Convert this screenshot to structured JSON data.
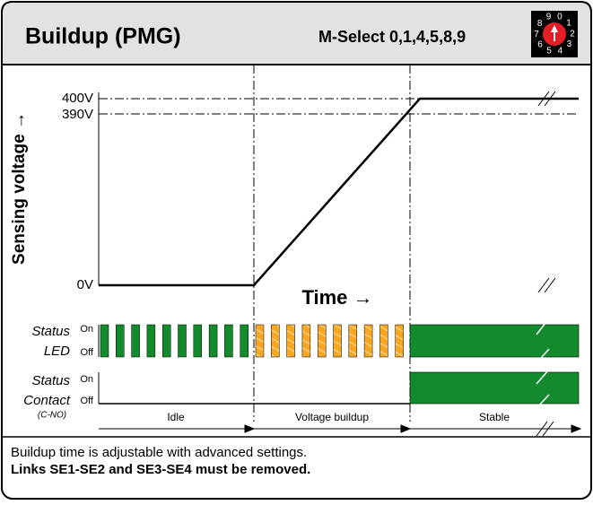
{
  "header": {
    "title": "Buildup (PMG)",
    "mode": "M-Select 0,1,4,5,8,9",
    "dial_digits": [
      "0",
      "1",
      "2",
      "3",
      "4",
      "5",
      "6",
      "7",
      "8",
      "9"
    ]
  },
  "voltage_chart": {
    "y_axis_label": "Sensing voltage →",
    "x_axis_label": "Time →",
    "levels": [
      "400V",
      "390V",
      "0V"
    ]
  },
  "rows": [
    {
      "label": [
        "Status",
        "LED"
      ],
      "states": [
        "On",
        "Off"
      ]
    },
    {
      "label": [
        "Status",
        "Contact"
      ],
      "sublabel": "(C-NO)",
      "states": [
        "On",
        "Off"
      ]
    }
  ],
  "phases": [
    "Idle",
    "Voltage buildup",
    "Stable"
  ],
  "footer": {
    "note": "Buildup time is adjustable with advanced settings.",
    "warning": "Links SE1-SE2 and SE3-SE4 must be removed."
  }
}
